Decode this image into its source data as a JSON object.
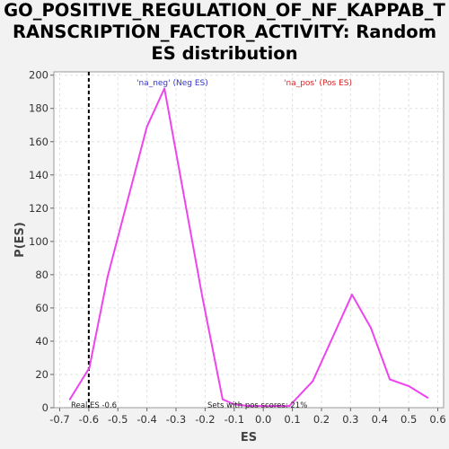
{
  "chart_data": {
    "type": "line",
    "title_lines": [
      "GO_POSITIVE_REGULATION_OF_NF_KAPPAB_T",
      "RANSCRIPTION_FACTOR_ACTIVITY: Random",
      "ES distribution"
    ],
    "xlabel": "ES",
    "ylabel": "P(ES)",
    "xlim": [
      -0.72,
      0.62
    ],
    "ylim": [
      0,
      202
    ],
    "x_ticks": [
      -0.7,
      -0.6,
      -0.5,
      -0.4,
      -0.3,
      -0.2,
      -0.1,
      0.0,
      0.1,
      0.2,
      0.3,
      0.4,
      0.5,
      0.6
    ],
    "x_tick_labels": [
      "-0.7",
      "-0.6",
      "-0.5",
      "-0.4",
      "-0.3",
      "-0.2",
      "-0.1",
      "0.0",
      "0.1",
      "0.2",
      "0.3",
      "0.4",
      "0.5",
      "0.6"
    ],
    "y_ticks": [
      0,
      20,
      40,
      60,
      80,
      100,
      120,
      140,
      160,
      180,
      200
    ],
    "y_tick_labels": [
      "0",
      "20",
      "40",
      "60",
      "80",
      "100",
      "120",
      "140",
      "160",
      "180",
      "200"
    ],
    "grid": true,
    "series": [
      {
        "name": "",
        "color": "#ee44ee",
        "x": [
          -0.665,
          -0.598,
          -0.535,
          -0.4,
          -0.34,
          -0.21,
          -0.14,
          -0.1,
          -0.05,
          0.0,
          0.05,
          0.09,
          0.17,
          0.305,
          0.37,
          0.435,
          0.5,
          0.565
        ],
        "y": [
          5,
          24,
          79,
          169,
          192,
          67,
          5,
          2,
          1,
          1,
          1,
          1,
          16,
          68,
          48,
          17,
          13,
          6
        ]
      }
    ],
    "reference_line": {
      "x": -0.6,
      "style": "dashed",
      "color": "#000000"
    },
    "legend": [
      {
        "label": "'na_neg' (Neg ES)",
        "color": "#3333cc",
        "placement": "top-left"
      },
      {
        "label": "'na_pos' (Pos ES)",
        "color": "#dd2222",
        "placement": "top-right"
      }
    ],
    "annotations": [
      {
        "text": "Real ES -0.6"
      },
      {
        "text": "Sets with pos scores: 21%"
      }
    ]
  }
}
